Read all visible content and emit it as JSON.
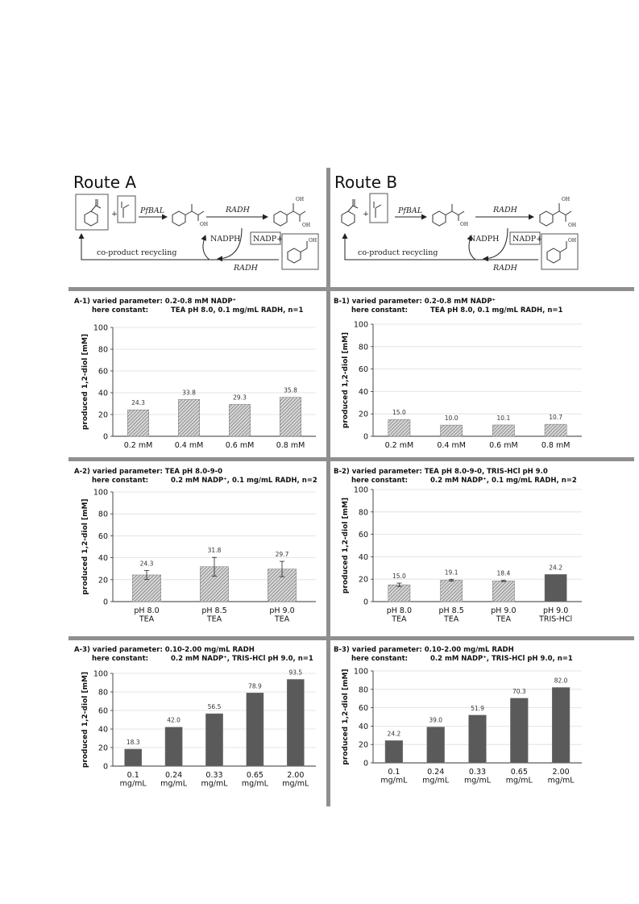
{
  "routes": [
    {
      "title": "Route A",
      "enzyme1": "PfBAL",
      "enzyme2": "RADH",
      "enzyme3": "RADH",
      "nadph": "NADPH",
      "nadp": "NADP+",
      "recycling": "co-product recycling"
    },
    {
      "title": "Route B",
      "enzyme1": "PfBAL",
      "enzyme2": "RADH",
      "enzyme3": "RADH",
      "nadph": "NADPH",
      "nadp": "NADP+",
      "recycling": "co-product recycling"
    }
  ],
  "chart_data": [
    {
      "id": "A-1",
      "type": "bar",
      "header_line1": "A-1) varied parameter:  0.2-0.8 mM NADP⁺",
      "header_line2_label": "here constant:",
      "header_line2_value": "TEA pH 8.0, 0.1 mg/mL RADH, n=1",
      "ylabel": "produced 1,2-diol [mM]",
      "ylim": [
        0,
        100
      ],
      "yticks": [
        0,
        20,
        40,
        60,
        80,
        100
      ],
      "categories": [
        [
          "0.2 mM"
        ],
        [
          "0.4 mM"
        ],
        [
          "0.6 mM"
        ],
        [
          "0.8 mM"
        ]
      ],
      "values": [
        24.3,
        33.8,
        29.3,
        35.8
      ],
      "labels": [
        "24.3",
        "33.8",
        "29.3",
        "35.8"
      ],
      "errors": [
        0,
        0,
        0,
        0
      ],
      "fills": [
        "hatch",
        "hatch",
        "hatch",
        "hatch"
      ]
    },
    {
      "id": "B-1",
      "type": "bar",
      "header_line1": "B-1) varied parameter:  0.2-0.8 mM NADP⁺",
      "header_line2_label": "here constant:",
      "header_line2_value": "TEA pH 8.0, 0.1 mg/mL RADH, n=1",
      "ylabel": "produced 1,2-diol [mM]",
      "ylim": [
        0,
        100
      ],
      "yticks": [
        0,
        20,
        40,
        60,
        80,
        100
      ],
      "categories": [
        [
          "0.2 mM"
        ],
        [
          "0.4 mM"
        ],
        [
          "0.6 mM"
        ],
        [
          "0.8 mM"
        ]
      ],
      "values": [
        15.0,
        10.0,
        10.1,
        10.7
      ],
      "labels": [
        "15.0",
        "10.0",
        "10.1",
        "10.7"
      ],
      "errors": [
        0,
        0,
        0,
        0
      ],
      "fills": [
        "hatch",
        "hatch",
        "hatch",
        "hatch"
      ]
    },
    {
      "id": "A-2",
      "type": "bar",
      "header_line1": "A-2) varied parameter:  TEA pH 8.0-9-0",
      "header_line2_label": "here constant:",
      "header_line2_value": "0.2 mM NADP⁺, 0.1 mg/mL RADH, n=2",
      "ylabel": "produced 1,2-diol [mM]",
      "ylim": [
        0,
        100
      ],
      "yticks": [
        0,
        20,
        40,
        60,
        80,
        100
      ],
      "categories": [
        [
          "pH 8.0",
          "TEA"
        ],
        [
          "pH 8.5",
          "TEA"
        ],
        [
          "pH 9.0",
          "TEA"
        ]
      ],
      "values": [
        24.3,
        31.8,
        29.7
      ],
      "labels": [
        "24.3",
        "31.8",
        "29.7"
      ],
      "errors": [
        4,
        8.5,
        7
      ],
      "fills": [
        "hatch",
        "hatch",
        "hatch"
      ]
    },
    {
      "id": "B-2",
      "type": "bar",
      "header_line1": "B-2) varied parameter:  TEA pH 8.0-9-0, TRIS-HCl pH 9.0",
      "header_line2_label": "here constant:",
      "header_line2_value": "0.2 mM NADP⁺, 0.1 mg/mL RADH, n=2",
      "ylabel": "produced 1,2-diol [mM]",
      "ylim": [
        0,
        100
      ],
      "yticks": [
        0,
        20,
        40,
        60,
        80,
        100
      ],
      "categories": [
        [
          "pH 8.0",
          "TEA"
        ],
        [
          "pH 8.5",
          "TEA"
        ],
        [
          "pH 9.0",
          "TEA"
        ],
        [
          "pH 9.0",
          "TRIS-HCl"
        ]
      ],
      "values": [
        15.0,
        19.1,
        18.4,
        24.2
      ],
      "labels": [
        "15.0",
        "19.1",
        "18.4",
        "24.2"
      ],
      "errors": [
        1.5,
        0.8,
        0.5,
        0
      ],
      "fills": [
        "hatch",
        "hatch",
        "hatch",
        "solid"
      ]
    },
    {
      "id": "A-3",
      "type": "bar",
      "header_line1": "A-3) varied parameter:  0.10-2.00 mg/mL RADH",
      "header_line2_label": "here constant:",
      "header_line2_value": "0.2 mM NADP⁺, TRIS-HCl pH 9.0, n=1",
      "ylabel": "produced 1,2-diol [mM]",
      "ylim": [
        0,
        100
      ],
      "yticks": [
        0,
        20,
        40,
        60,
        80,
        100
      ],
      "categories": [
        [
          "0.1",
          "mg/mL"
        ],
        [
          "0.24",
          "mg/mL"
        ],
        [
          "0.33",
          "mg/mL"
        ],
        [
          "0.65",
          "mg/mL"
        ],
        [
          "2.00",
          "mg/mL"
        ]
      ],
      "values": [
        18.3,
        42.0,
        56.5,
        78.9,
        93.5
      ],
      "labels": [
        "18.3",
        "42.0",
        "56.5",
        "78.9",
        "93.5"
      ],
      "errors": [
        0,
        0,
        0,
        0,
        0
      ],
      "fills": [
        "solid",
        "solid",
        "solid",
        "solid",
        "solid"
      ]
    },
    {
      "id": "B-3",
      "type": "bar",
      "header_line1": "B-3) varied parameter:  0.10-2.00 mg/mL RADH",
      "header_line2_label": "here constant:",
      "header_line2_value": "0.2 mM NADP⁺, TRIS-HCl pH 9.0, n=1",
      "ylabel": "produced 1,2-diol [mM]",
      "ylim": [
        0,
        100
      ],
      "yticks": [
        0,
        20,
        40,
        60,
        80,
        100
      ],
      "categories": [
        [
          "0.1",
          "mg/mL"
        ],
        [
          "0.24",
          "mg/mL"
        ],
        [
          "0.33",
          "mg/mL"
        ],
        [
          "0.65",
          "mg/mL"
        ],
        [
          "2.00",
          "mg/mL"
        ]
      ],
      "values": [
        24.2,
        39.0,
        51.9,
        70.3,
        82.0
      ],
      "labels": [
        "24.2",
        "39.0",
        "51.9",
        "70.3",
        "82.0"
      ],
      "errors": [
        0,
        0,
        0,
        0,
        0
      ],
      "fills": [
        "solid",
        "solid",
        "solid",
        "solid",
        "solid"
      ]
    }
  ],
  "colors": {
    "divider": "#8f8f8f",
    "bar_solid": "#5a5a5a",
    "hatch_bg": "#d9d9d9",
    "hatch_line": "#6e6e6e",
    "grid": "#dedede",
    "axis": "#333333"
  }
}
